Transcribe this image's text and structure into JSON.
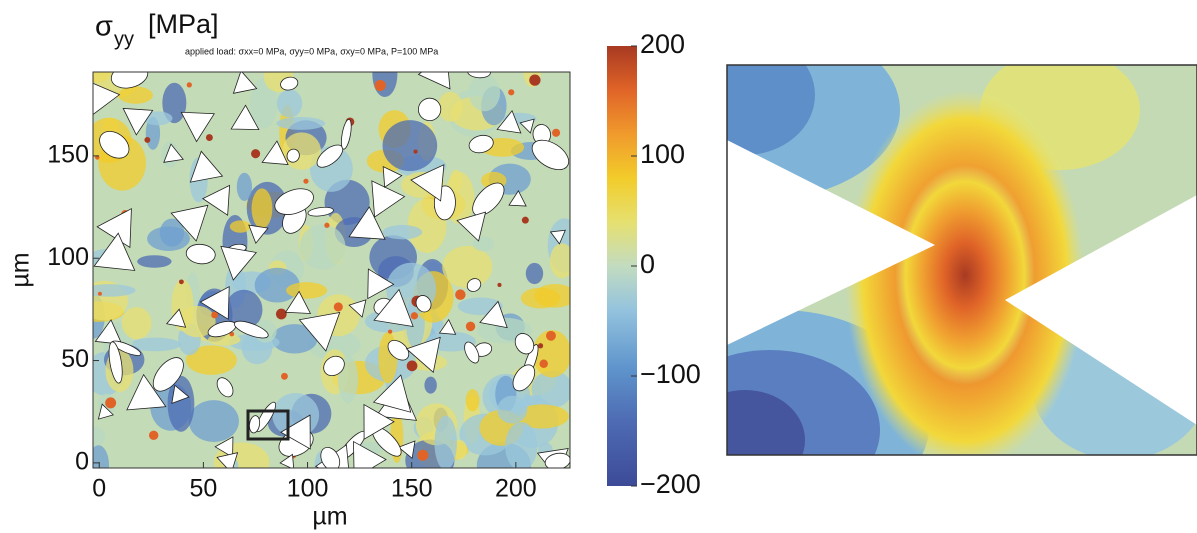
{
  "chart_data": {
    "type": "heatmap",
    "title": "σ",
    "title_subscript": "yy",
    "title_unit": "[MPa]",
    "subtitle": "applied load: σxx=0 MPa,  σyy=0 MPa,  σxy=0 MPa,  P=100 MPa",
    "x_label": "µm",
    "y_label": "µm",
    "xlim": [
      -3,
      226
    ],
    "xticks": [
      0,
      50,
      100,
      150,
      200
    ],
    "ylim": [
      -2.5,
      191
    ],
    "yticks": [
      0,
      50,
      100,
      150
    ],
    "clim": [
      -200,
      200
    ],
    "cticks": [
      {
        "value": -200,
        "label": "−200"
      },
      {
        "value": -100,
        "label": "−100"
      },
      0,
      100,
      200
    ]
  }
}
